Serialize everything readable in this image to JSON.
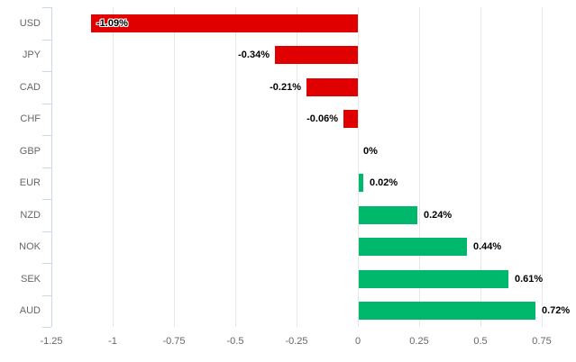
{
  "chart_data": {
    "type": "bar",
    "orientation": "horizontal",
    "categories": [
      "USD",
      "JPY",
      "CAD",
      "CHF",
      "GBP",
      "EUR",
      "NZD",
      "NOK",
      "SEK",
      "AUD"
    ],
    "values": [
      -1.09,
      -0.34,
      -0.21,
      -0.06,
      0,
      0.02,
      0.24,
      0.44,
      0.61,
      0.72
    ],
    "value_labels": [
      "-1.09%",
      "-0.34%",
      "-0.21%",
      "-0.06%",
      "0%",
      "0.02%",
      "0.24%",
      "0.44%",
      "0.61%",
      "0.72%"
    ],
    "x_ticks": [
      -1.25,
      -1,
      -0.75,
      -0.5,
      -0.25,
      0,
      0.25,
      0.5,
      0.75
    ],
    "x_tick_labels": [
      "-1.25",
      "-1",
      "-0.75",
      "-0.5",
      "-0.25",
      "0",
      "0.25",
      "0.5",
      "0.75"
    ],
    "xlim": [
      -1.25,
      0.85
    ],
    "grid": true,
    "legend": false,
    "colors": {
      "negative_bar": "#e00000",
      "positive_bar": "#00b86b",
      "gridline": "#e6e6e6",
      "axis_line": "#ccd6eb",
      "axis_label_text": "#666666",
      "data_label_text": "#000000",
      "background": "#ffffff"
    }
  }
}
